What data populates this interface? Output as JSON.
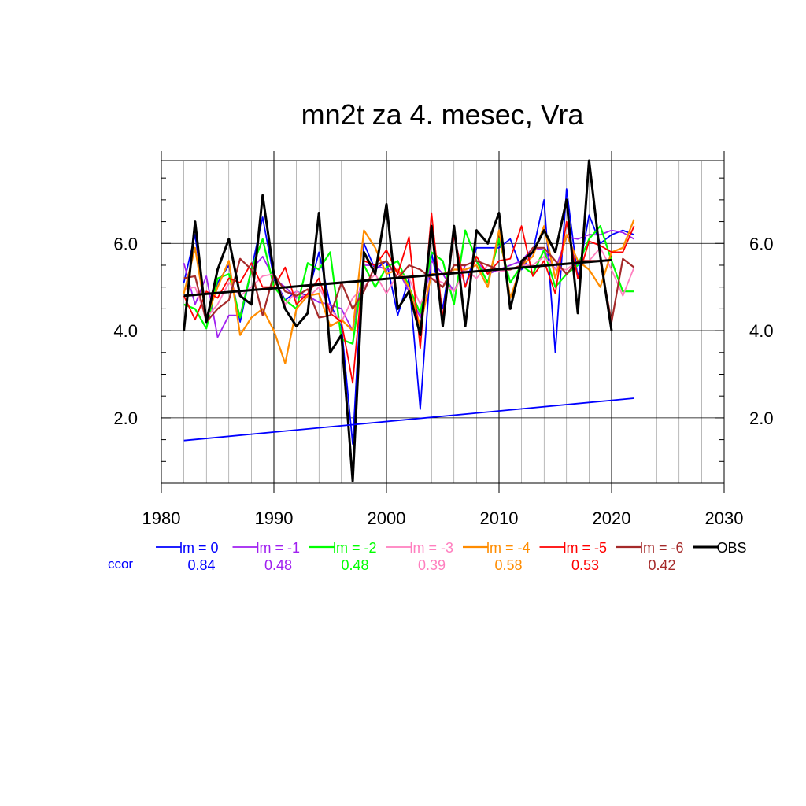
{
  "chart_data": {
    "type": "line",
    "title": "mn2t za 4. mesec, Vra",
    "xlim": [
      1980,
      2030
    ],
    "ylim": [
      0.5,
      7.9
    ],
    "x_ticks": [
      1980,
      1990,
      2000,
      2010,
      2020,
      2030
    ],
    "x_tick_labels": [
      "1980",
      "1990",
      "2000",
      "2010",
      "2020",
      "2030"
    ],
    "y_ticks": [
      2.0,
      4.0,
      6.0
    ],
    "y_tick_labels": [
      "2.0",
      "4.0",
      "6.0"
    ],
    "grid": true,
    "legend_position": "bottom",
    "ccor_label": "ccor",
    "series": [
      {
        "name": "lm = 0",
        "color": "#0000ff",
        "width": 1.8,
        "ccor": "0.84",
        "x": [
          1982,
          1983,
          1984,
          1985,
          1986,
          1987,
          1988,
          1989,
          1990,
          1991,
          1992,
          1993,
          1994,
          1995,
          1996,
          1997,
          1998,
          1999,
          2000,
          2001,
          2002,
          2003,
          2004,
          2005,
          2006,
          2007,
          2008,
          2009,
          2010,
          2011,
          2012,
          2013,
          2014,
          2015,
          2016,
          2017,
          2018,
          2019,
          2020,
          2021,
          2022
        ],
        "y": [
          5.1,
          6.2,
          4.3,
          5.1,
          5.5,
          4.2,
          5.4,
          6.6,
          5.2,
          4.7,
          4.9,
          4.8,
          5.8,
          4.6,
          4.1,
          1.4,
          6.0,
          5.4,
          5.6,
          4.35,
          5.2,
          2.2,
          5.8,
          4.5,
          6.2,
          5.0,
          5.9,
          5.9,
          5.9,
          6.1,
          5.4,
          5.8,
          7.0,
          3.5,
          7.25,
          5.2,
          6.65,
          6.0,
          6.2,
          6.3,
          6.2
        ]
      },
      {
        "name": "lm = -1",
        "color": "#a020f0",
        "width": 1.8,
        "ccor": "0.48",
        "x": [
          1982,
          1983,
          1984,
          1985,
          1986,
          1987,
          1988,
          1989,
          1990,
          1991,
          1992,
          1993,
          1994,
          1995,
          1996,
          1997,
          1998,
          1999,
          2000,
          2001,
          2002,
          2003,
          2004,
          2005,
          2006,
          2007,
          2008,
          2009,
          2010,
          2011,
          2012,
          2013,
          2014,
          2015,
          2016,
          2017,
          2018,
          2019,
          2020,
          2021,
          2022
        ],
        "y": [
          5.55,
          4.6,
          5.25,
          3.85,
          4.35,
          4.35,
          5.4,
          5.7,
          5.2,
          5.0,
          4.75,
          4.8,
          4.65,
          4.6,
          4.5,
          4.0,
          5.5,
          5.5,
          5.4,
          5.4,
          4.9,
          4.3,
          5.6,
          5.3,
          4.9,
          5.5,
          5.6,
          5.3,
          5.4,
          5.5,
          5.6,
          5.9,
          5.85,
          5.4,
          6.15,
          6.1,
          6.2,
          6.2,
          6.3,
          6.25,
          6.1
        ]
      },
      {
        "name": "lm = -2",
        "color": "#00ff00",
        "width": 2.2,
        "ccor": "0.48",
        "x": [
          1982,
          1983,
          1984,
          1985,
          1986,
          1987,
          1988,
          1989,
          1990,
          1991,
          1992,
          1993,
          1994,
          1995,
          1996,
          1997,
          1998,
          1999,
          2000,
          2001,
          2002,
          2003,
          2004,
          2005,
          2006,
          2007,
          2008,
          2009,
          2010,
          2011,
          2012,
          2013,
          2014,
          2015,
          2016,
          2017,
          2018,
          2019,
          2020,
          2021,
          2022
        ],
        "y": [
          4.6,
          4.5,
          4.05,
          5.2,
          5.3,
          4.3,
          5.4,
          6.1,
          5.0,
          4.7,
          4.5,
          5.55,
          5.4,
          5.8,
          3.8,
          3.7,
          5.5,
          5.0,
          5.45,
          5.6,
          5.0,
          4.4,
          5.8,
          5.6,
          4.6,
          6.3,
          5.6,
          5.1,
          6.1,
          5.1,
          5.5,
          5.3,
          5.85,
          5.0,
          5.3,
          5.5,
          6.1,
          6.4,
          5.6,
          4.9,
          4.9
        ]
      },
      {
        "name": "lm = -3",
        "color": "#ff7fbf",
        "width": 1.8,
        "ccor": "0.39",
        "x": [
          1982,
          1983,
          1984,
          1985,
          1986,
          1987,
          1988,
          1989,
          1990,
          1991,
          1992,
          1993,
          1994,
          1995,
          1996,
          1997,
          1998,
          1999,
          2000,
          2001,
          2002,
          2003,
          2004,
          2005,
          2006,
          2007,
          2008,
          2009,
          2010,
          2011,
          2012,
          2013,
          2014,
          2015,
          2016,
          2017,
          2018,
          2019,
          2020,
          2021,
          2022
        ],
        "y": [
          4.95,
          5.0,
          4.3,
          4.6,
          5.1,
          4.8,
          5.0,
          5.25,
          5.3,
          4.6,
          4.9,
          4.75,
          5.0,
          4.5,
          4.2,
          4.75,
          5.0,
          5.3,
          4.85,
          5.3,
          5.2,
          4.6,
          5.2,
          5.1,
          4.9,
          5.4,
          5.2,
          5.5,
          5.35,
          5.4,
          5.5,
          5.5,
          5.7,
          5.4,
          5.4,
          5.6,
          5.6,
          5.9,
          5.4,
          4.8,
          5.45
        ]
      },
      {
        "name": "lm = -4",
        "color": "#ff8c00",
        "width": 2.2,
        "ccor": "0.58",
        "x": [
          1982,
          1983,
          1984,
          1985,
          1986,
          1987,
          1988,
          1989,
          1990,
          1991,
          1992,
          1993,
          1994,
          1995,
          1996,
          1997,
          1998,
          1999,
          2000,
          2001,
          2002,
          2003,
          2004,
          2005,
          2006,
          2007,
          2008,
          2009,
          2010,
          2011,
          2012,
          2013,
          2014,
          2015,
          2016,
          2017,
          2018,
          2019,
          2020,
          2021,
          2022
        ],
        "y": [
          4.85,
          5.9,
          4.3,
          5.0,
          5.6,
          3.9,
          4.3,
          4.5,
          4.0,
          3.25,
          4.5,
          4.8,
          4.85,
          4.1,
          4.25,
          4.0,
          6.3,
          5.9,
          5.3,
          5.4,
          5.0,
          4.1,
          5.3,
          5.3,
          5.4,
          5.4,
          5.5,
          5.0,
          6.3,
          4.75,
          5.5,
          5.7,
          6.4,
          5.2,
          6.2,
          5.6,
          5.4,
          5.0,
          5.8,
          5.9,
          6.55
        ]
      },
      {
        "name": "lm = -5",
        "color": "#ff0000",
        "width": 1.8,
        "ccor": "0.53",
        "x": [
          1982,
          1983,
          1984,
          1985,
          1986,
          1987,
          1988,
          1989,
          1990,
          1991,
          1992,
          1993,
          1994,
          1995,
          1996,
          1997,
          1998,
          1999,
          2000,
          2001,
          2002,
          2003,
          2004,
          2005,
          2006,
          2007,
          2008,
          2009,
          2010,
          2011,
          2012,
          2013,
          2014,
          2015,
          2016,
          2017,
          2018,
          2019,
          2020,
          2021,
          2022
        ],
        "y": [
          4.8,
          4.25,
          4.9,
          4.75,
          5.2,
          5.1,
          5.55,
          5.0,
          5.0,
          5.45,
          4.6,
          4.85,
          5.2,
          4.4,
          4.2,
          2.8,
          5.6,
          5.5,
          5.85,
          5.3,
          6.15,
          3.6,
          6.7,
          4.3,
          6.2,
          5.0,
          5.7,
          5.3,
          5.6,
          5.65,
          6.4,
          5.25,
          5.6,
          4.85,
          6.5,
          5.2,
          6.05,
          5.95,
          5.8,
          5.8,
          6.4
        ]
      },
      {
        "name": "lm = -6",
        "color": "#a52a2a",
        "width": 2.2,
        "ccor": "0.42",
        "x": [
          1982,
          1983,
          1984,
          1985,
          1986,
          1987,
          1988,
          1989,
          1990,
          1991,
          1992,
          1993,
          1994,
          1995,
          1996,
          1997,
          1998,
          1999,
          2000,
          2001,
          2002,
          2003,
          2004,
          2005,
          2006,
          2007,
          2008,
          2009,
          2010,
          2011,
          2012,
          2013,
          2014,
          2015,
          2016,
          2017,
          2018,
          2019,
          2020,
          2021,
          2022
        ],
        "y": [
          5.2,
          5.25,
          4.2,
          4.5,
          4.7,
          5.65,
          5.4,
          4.35,
          5.3,
          4.9,
          4.8,
          4.95,
          4.3,
          4.35,
          5.1,
          4.5,
          4.9,
          5.5,
          5.6,
          5.2,
          5.5,
          5.4,
          5.2,
          5.0,
          5.5,
          5.5,
          5.6,
          5.5,
          5.4,
          5.4,
          5.5,
          5.9,
          5.9,
          5.6,
          5.3,
          5.6,
          5.6,
          5.6,
          4.2,
          5.65,
          5.45
        ]
      },
      {
        "name": "OBS",
        "color": "#000000",
        "width": 3.0,
        "ccor": "",
        "x": [
          1982,
          1983,
          1984,
          1985,
          1986,
          1987,
          1988,
          1989,
          1990,
          1991,
          1992,
          1993,
          1994,
          1995,
          1996,
          1997,
          1998,
          1999,
          2000,
          2001,
          2002,
          2003,
          2004,
          2005,
          2006,
          2007,
          2008,
          2009,
          2010,
          2011,
          2012,
          2013,
          2014,
          2015,
          2016,
          2017,
          2018,
          2019,
          2020
        ],
        "y": [
          4.0,
          6.5,
          4.2,
          5.4,
          6.1,
          4.8,
          4.6,
          7.1,
          5.3,
          4.5,
          4.1,
          4.4,
          6.7,
          3.5,
          3.9,
          0.55,
          5.8,
          5.3,
          6.9,
          4.5,
          4.9,
          3.9,
          6.4,
          4.1,
          6.4,
          4.1,
          6.3,
          6.0,
          6.7,
          4.5,
          5.6,
          5.8,
          6.3,
          5.8,
          7.0,
          4.4,
          7.9,
          5.7,
          4.0
        ]
      }
    ],
    "trend_lines": [
      {
        "name": "OBS trend",
        "color": "#000000",
        "width": 3.0,
        "x": [
          1982,
          2020
        ],
        "y": [
          4.8,
          5.62
        ]
      },
      {
        "name": "lm = 0 trend",
        "color": "#0000ff",
        "width": 1.8,
        "x": [
          1982,
          2022
        ],
        "y": [
          1.48,
          2.45
        ]
      }
    ]
  }
}
